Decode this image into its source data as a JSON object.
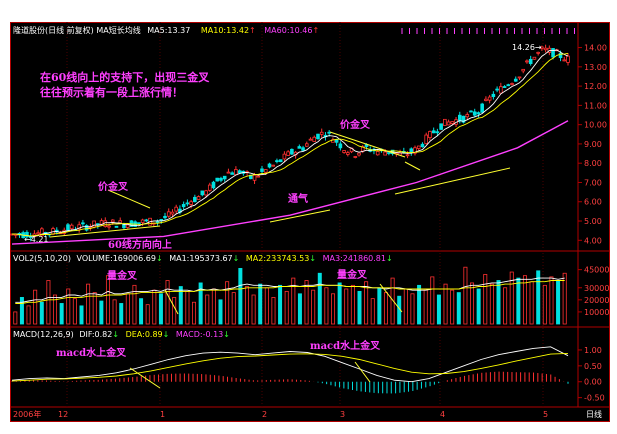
{
  "price_header": {
    "title": "隆道股份(日线 前复权)",
    "ma_label": "MA短长均线",
    "ma5": "MA5:13.37",
    "ma10": "MA10:13.42",
    "ma60": "MA60:10.46",
    "colors": {
      "title": "#ffffff",
      "ma5": "#ffffff",
      "ma10": "#ffff00",
      "ma60": "#ff40ff"
    }
  },
  "vol_header": {
    "params": "VOL2(5,10,20)",
    "volume": "VOLUME:169006.69",
    "ma1": "MA1:195373.67",
    "ma2": "MA2:233743.53",
    "ma3": "MA3:241860.81"
  },
  "macd_header": {
    "params": "MACD(12,26,9)",
    "dif": "DIF:0.82",
    "dea": "DEA:0.89",
    "macd": "MACD:-0.13"
  },
  "annotations": {
    "main_note_line1": "在60线向上的支持下，出现三金叉",
    "main_note_line2": "往往预示着有一段上涨行情！",
    "price_cross_1": "价金叉",
    "price_cross_2": "价金叉",
    "channel": "通气",
    "ma60_up": "60线方向向上",
    "vol_cross_1": "量金叉",
    "vol_cross_2": "量金叉",
    "macd_cross_1": "macd水上金叉",
    "macd_cross_2": "macd水上金叉",
    "low_marker": "4.21",
    "high_marker": "14.26"
  },
  "x_axis": {
    "labels": [
      "2006年",
      "12",
      "1",
      "2",
      "3",
      "4",
      "5"
    ],
    "period": "日线"
  },
  "chart_data": [
    {
      "type": "candlestick",
      "title": "隆道股份(日线 前复权)",
      "y_ticks": [
        4.0,
        5.0,
        6.0,
        7.0,
        8.0,
        9.0,
        10.0,
        11.0,
        12.0,
        13.0,
        14.0
      ],
      "ylim": [
        3.6,
        14.6
      ],
      "series": [
        {
          "name": "MA5",
          "last": 13.37
        },
        {
          "name": "MA10",
          "last": 13.42
        },
        {
          "name": "MA60",
          "last": 10.46
        }
      ],
      "low": 4.21,
      "high": 14.26,
      "close_path": [
        [
          0,
          4.3
        ],
        [
          8,
          4.35
        ],
        [
          15,
          4.4
        ],
        [
          22,
          4.6
        ],
        [
          30,
          4.75
        ],
        [
          38,
          4.9
        ],
        [
          45,
          4.85
        ],
        [
          52,
          4.95
        ],
        [
          58,
          5.0
        ],
        [
          64,
          5.4
        ],
        [
          70,
          6.0
        ],
        [
          76,
          6.4
        ],
        [
          80,
          6.9
        ],
        [
          85,
          7.5
        ],
        [
          90,
          7.6
        ],
        [
          95,
          7.2
        ],
        [
          100,
          7.6
        ],
        [
          105,
          8.0
        ],
        [
          110,
          8.5
        ],
        [
          115,
          8.8
        ],
        [
          120,
          9.4
        ],
        [
          124,
          9.6
        ],
        [
          128,
          9.2
        ],
        [
          132,
          8.7
        ],
        [
          136,
          8.5
        ],
        [
          140,
          8.8
        ],
        [
          145,
          8.6
        ],
        [
          150,
          8.6
        ],
        [
          155,
          8.4
        ],
        [
          160,
          8.7
        ],
        [
          165,
          9.4
        ],
        [
          170,
          10.0
        ],
        [
          175,
          10.2
        ],
        [
          180,
          10.4
        ],
        [
          185,
          10.7
        ],
        [
          190,
          11.5
        ],
        [
          195,
          12.0
        ],
        [
          200,
          12.5
        ],
        [
          205,
          13.3
        ],
        [
          210,
          13.9
        ],
        [
          215,
          13.7
        ],
        [
          220,
          13.4
        ]
      ],
      "ma60_path": [
        [
          0,
          3.8
        ],
        [
          60,
          4.2
        ],
        [
          110,
          5.3
        ],
        [
          160,
          7.0
        ],
        [
          200,
          8.8
        ],
        [
          220,
          10.2
        ]
      ]
    },
    {
      "type": "bar",
      "name": "VOL2(5,10,20)",
      "y_ticks": [
        10000,
        20000,
        30000,
        45000
      ],
      "ylim": [
        0,
        48000
      ],
      "volume": [
        1000,
        2200,
        1500,
        2800,
        1800,
        3600,
        2400,
        1700,
        2900,
        2100,
        1500,
        3300,
        2600,
        1900,
        4000,
        2000,
        1700,
        2500,
        3200,
        2100,
        1600,
        2800,
        2500,
        3600,
        2200,
        3100,
        2700,
        1800,
        3400,
        2400,
        2900,
        2000,
        3500,
        2600,
        4600,
        3100,
        2400,
        3300,
        3000,
        2200,
        3200,
        2700,
        3800,
        2500,
        3600,
        2800,
        4200,
        3000,
        2500,
        3400,
        2900,
        3200,
        2700,
        3500,
        2100,
        3000,
        2600,
        3800,
        2300,
        2900,
        2500,
        3200,
        2800,
        3900,
        2400,
        3300,
        2800,
        2600,
        4700,
        3400,
        2900,
        4100,
        3300,
        3600,
        3000,
        4300,
        3800,
        4000,
        3500,
        4400,
        3200,
        3900,
        3600,
        4200
      ],
      "ma_lines": [
        [
          18,
          18,
          19,
          20,
          20,
          22,
          22,
          22,
          24,
          24,
          23,
          25,
          25,
          24,
          27,
          25,
          25,
          26,
          27,
          27,
          27,
          28,
          27,
          29,
          28,
          28,
          28,
          27,
          29,
          28,
          29,
          28,
          29,
          30,
          32,
          33,
          32,
          32,
          32,
          31,
          31,
          31,
          32,
          31,
          32,
          32,
          33,
          32,
          32,
          32,
          31,
          31,
          31,
          31,
          30,
          30,
          29,
          30,
          30,
          29,
          28,
          28,
          28,
          29,
          29,
          29,
          29,
          29,
          31,
          32,
          32,
          33,
          34,
          34,
          35,
          36,
          37,
          37,
          37,
          38,
          38,
          38,
          37,
          38
        ],
        [
          17,
          17,
          18,
          18,
          19,
          20,
          20,
          21,
          22,
          22,
          22,
          23,
          23,
          23,
          24,
          24,
          24,
          25,
          25,
          26,
          26,
          26,
          26,
          27,
          27,
          27,
          27,
          27,
          28,
          28,
          28,
          28,
          28,
          29,
          29,
          30,
          30,
          30,
          30,
          30,
          31,
          31,
          31,
          31,
          31,
          31,
          32,
          32,
          32,
          32,
          31,
          31,
          31,
          30,
          30,
          30,
          30,
          30,
          29,
          29,
          29,
          29,
          29,
          29,
          29,
          29,
          29,
          29,
          30,
          30,
          31,
          31,
          32,
          32,
          33,
          33,
          34,
          34,
          35,
          35,
          35,
          36,
          36,
          36
        ]
      ]
    },
    {
      "type": "line",
      "name": "MACD(12,26,9)",
      "y_ticks": [
        -0.5,
        0.0,
        0.5,
        1.0
      ],
      "ylim": [
        -0.7,
        1.25
      ],
      "series": [
        {
          "name": "DIF",
          "values": [
            0.05,
            0.1,
            0.12,
            0.1,
            0.15,
            0.2,
            0.28,
            0.4,
            0.55,
            0.7,
            0.82,
            0.9,
            0.93,
            0.9,
            0.85,
            0.9,
            0.95,
            0.92,
            0.8,
            0.6,
            0.4,
            0.2,
            0.05,
            0.0,
            0.1,
            0.3,
            0.5,
            0.7,
            0.85,
            0.95,
            1.05,
            1.1,
            0.82
          ]
        },
        {
          "name": "DEA",
          "values": [
            0.02,
            0.05,
            0.08,
            0.09,
            0.11,
            0.14,
            0.18,
            0.25,
            0.34,
            0.45,
            0.56,
            0.66,
            0.74,
            0.79,
            0.81,
            0.84,
            0.87,
            0.88,
            0.86,
            0.8,
            0.7,
            0.56,
            0.42,
            0.3,
            0.25,
            0.26,
            0.32,
            0.42,
            0.53,
            0.65,
            0.76,
            0.87,
            0.89
          ]
        },
        {
          "name": "MACD",
          "values": [
            0.06,
            0.1,
            0.08,
            0.02,
            0.08,
            0.12,
            0.2,
            0.3,
            0.42,
            0.5,
            0.52,
            0.48,
            0.38,
            0.22,
            0.08,
            0.12,
            0.16,
            0.08,
            -0.12,
            -0.4,
            -0.6,
            -0.72,
            -0.74,
            -0.6,
            -0.3,
            0.08,
            0.36,
            0.56,
            0.64,
            0.6,
            0.58,
            0.46,
            -0.13
          ]
        }
      ]
    }
  ]
}
